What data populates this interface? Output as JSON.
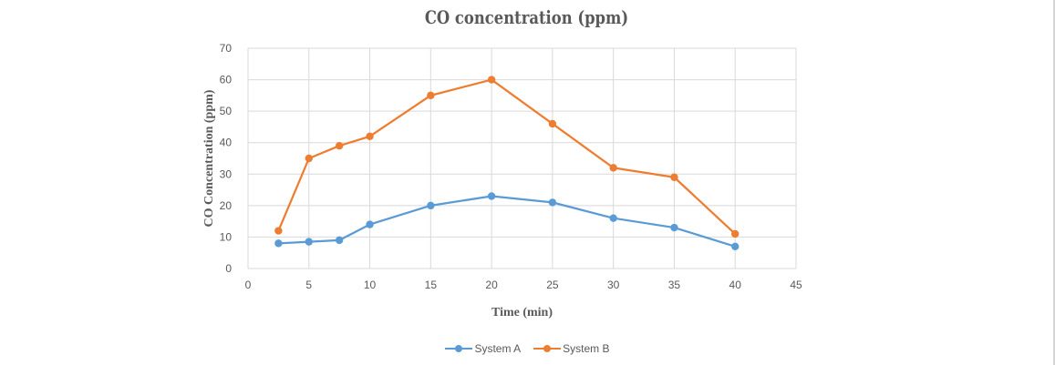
{
  "chart_data": {
    "type": "line",
    "title": "CO concentration (ppm)",
    "xlabel": "Time (min)",
    "ylabel": "CO Concentration (ppm)",
    "xlim": [
      0,
      45
    ],
    "ylim": [
      0,
      70
    ],
    "x_ticks": [
      0,
      5,
      10,
      15,
      20,
      25,
      30,
      35,
      40,
      45
    ],
    "y_ticks": [
      0,
      10,
      20,
      30,
      40,
      50,
      60,
      70
    ],
    "grid": true,
    "legend_position": "bottom",
    "x": [
      2.5,
      5,
      7.5,
      10,
      15,
      20,
      25,
      30,
      35,
      40
    ],
    "series": [
      {
        "name": "System A",
        "color": "#5b9bd5",
        "values": [
          8,
          8.5,
          9,
          14,
          20,
          23,
          21,
          16,
          13,
          7
        ]
      },
      {
        "name": "System B",
        "color": "#ed7d31",
        "values": [
          12,
          35,
          39,
          42,
          55,
          60,
          46,
          32,
          29,
          11
        ]
      }
    ]
  }
}
